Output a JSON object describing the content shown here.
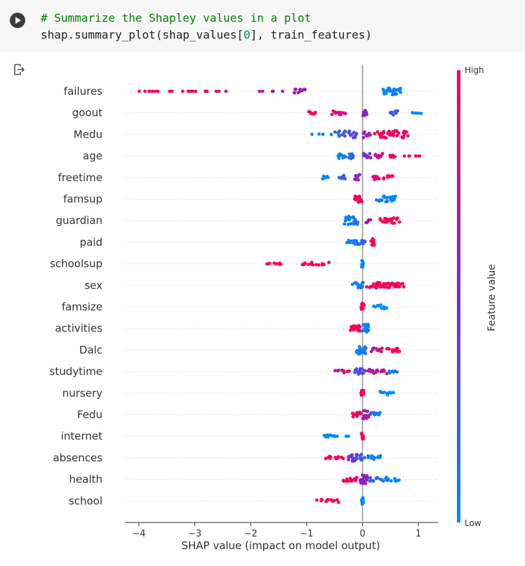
{
  "code_cell": {
    "line1": "# Summarize the Shapley values in a plot",
    "line2_prefix": "shap.summary_plot(shap_values[",
    "line2_index": "0",
    "line2_suffix": "], train_features)"
  },
  "colors": {
    "low": "#008afb",
    "mid": "#7b2bd0",
    "high": "#ff0052",
    "zero_line": "#999999"
  },
  "chart_data": {
    "type": "scatter",
    "xlabel": "SHAP value (impact on model output)",
    "xlim": [
      -4.25,
      1.35
    ],
    "xticks": [
      -4,
      -3,
      -2,
      -1,
      0,
      1
    ],
    "colorbar": {
      "label": "Feature value",
      "high": "High",
      "low": "Low"
    },
    "features": [
      "failures",
      "goout",
      "Medu",
      "age",
      "freetime",
      "famsup",
      "guardian",
      "paid",
      "schoolsup",
      "sex",
      "famsize",
      "activities",
      "Dalc",
      "studytime",
      "nursery",
      "Fedu",
      "internet",
      "absences",
      "health",
      "school"
    ],
    "series": [
      {
        "feature": "failures",
        "clusters": [
          {
            "x0": 0.35,
            "x1": 0.72,
            "n": 28,
            "c0": 0.0,
            "c1": 0.05,
            "s": 5
          },
          {
            "x0": -4.0,
            "x1": -3.6,
            "n": 7,
            "c0": 1.0,
            "c1": 0.95,
            "s": 0
          },
          {
            "x0": -3.6,
            "x1": -2.3,
            "n": 14,
            "c0": 0.97,
            "c1": 0.85,
            "s": 0
          },
          {
            "x0": -1.9,
            "x1": -1.4,
            "n": 5,
            "c0": 0.75,
            "c1": 0.65,
            "s": 0
          },
          {
            "x0": -1.25,
            "x1": -1.0,
            "n": 12,
            "c0": 0.65,
            "c1": 0.6,
            "s": 3
          }
        ]
      },
      {
        "feature": "goout",
        "clusters": [
          {
            "x0": -0.98,
            "x1": -0.82,
            "n": 8,
            "c0": 1.0,
            "c1": 0.95,
            "s": 2
          },
          {
            "x0": -0.55,
            "x1": -0.3,
            "n": 10,
            "c0": 0.9,
            "c1": 0.8,
            "s": 3
          },
          {
            "x0": 0.0,
            "x1": 0.08,
            "n": 10,
            "c0": 0.6,
            "c1": 0.5,
            "s": 4
          },
          {
            "x0": 0.48,
            "x1": 0.65,
            "n": 8,
            "c0": 0.3,
            "c1": 0.2,
            "s": 3
          },
          {
            "x0": 0.85,
            "x1": 1.08,
            "n": 5,
            "c0": 0.05,
            "c1": 0.0,
            "s": 1
          }
        ]
      },
      {
        "feature": "Medu",
        "clusters": [
          {
            "x0": -0.95,
            "x1": -0.55,
            "n": 4,
            "c0": 0.0,
            "c1": 0.1,
            "s": 1
          },
          {
            "x0": -0.5,
            "x1": -0.05,
            "n": 20,
            "c0": 0.2,
            "c1": 0.35,
            "s": 5
          },
          {
            "x0": 0.0,
            "x1": 0.15,
            "n": 10,
            "c0": 0.6,
            "c1": 0.7,
            "s": 5
          },
          {
            "x0": 0.2,
            "x1": 0.9,
            "n": 40,
            "c0": 1.0,
            "c1": 0.9,
            "s": 5
          }
        ]
      },
      {
        "feature": "age",
        "clusters": [
          {
            "x0": -0.45,
            "x1": -0.3,
            "n": 10,
            "c0": 0.0,
            "c1": 0.05,
            "s": 4
          },
          {
            "x0": -0.25,
            "x1": -0.15,
            "n": 10,
            "c0": 0.15,
            "c1": 0.2,
            "s": 5
          },
          {
            "x0": 0.0,
            "x1": 0.15,
            "n": 10,
            "c0": 0.45,
            "c1": 0.55,
            "s": 4
          },
          {
            "x0": 0.2,
            "x1": 0.38,
            "n": 10,
            "c0": 0.7,
            "c1": 0.8,
            "s": 4
          },
          {
            "x0": 0.48,
            "x1": 0.6,
            "n": 5,
            "c0": 0.9,
            "c1": 0.95,
            "s": 2
          },
          {
            "x0": 0.7,
            "x1": 1.1,
            "n": 6,
            "c0": 1.0,
            "c1": 1.0,
            "s": 0
          }
        ]
      },
      {
        "feature": "freetime",
        "clusters": [
          {
            "x0": -0.72,
            "x1": -0.6,
            "n": 5,
            "c0": 0.0,
            "c1": 0.05,
            "s": 2
          },
          {
            "x0": -0.42,
            "x1": -0.3,
            "n": 8,
            "c0": 0.2,
            "c1": 0.25,
            "s": 3
          },
          {
            "x0": -0.15,
            "x1": -0.05,
            "n": 8,
            "c0": 0.5,
            "c1": 0.55,
            "s": 4
          },
          {
            "x0": 0.18,
            "x1": 0.3,
            "n": 8,
            "c0": 0.85,
            "c1": 0.9,
            "s": 3
          },
          {
            "x0": 0.35,
            "x1": 0.58,
            "n": 8,
            "c0": 0.95,
            "c1": 1.0,
            "s": 3
          }
        ]
      },
      {
        "feature": "famsup",
        "clusters": [
          {
            "x0": -0.15,
            "x1": 0.0,
            "n": 16,
            "c0": 1.0,
            "c1": 0.95,
            "s": 5
          },
          {
            "x0": 0.22,
            "x1": 0.65,
            "n": 22,
            "c0": 0.05,
            "c1": 0.0,
            "s": 4
          }
        ]
      },
      {
        "feature": "guardian",
        "clusters": [
          {
            "x0": -0.35,
            "x1": -0.05,
            "n": 22,
            "c0": 0.0,
            "c1": 0.15,
            "s": 6
          },
          {
            "x0": 0.05,
            "x1": 0.15,
            "n": 5,
            "c0": 0.6,
            "c1": 0.65,
            "s": 3
          },
          {
            "x0": 0.28,
            "x1": 0.68,
            "n": 26,
            "c0": 1.0,
            "c1": 0.95,
            "s": 4
          }
        ]
      },
      {
        "feature": "paid",
        "clusters": [
          {
            "x0": -0.3,
            "x1": 0.08,
            "n": 22,
            "c0": 0.0,
            "c1": 0.2,
            "s": 3
          },
          {
            "x0": 0.15,
            "x1": 0.22,
            "n": 10,
            "c0": 1.0,
            "c1": 1.0,
            "s": 5
          }
        ]
      },
      {
        "feature": "schoolsup",
        "clusters": [
          {
            "x0": -1.75,
            "x1": -1.4,
            "n": 8,
            "c0": 1.0,
            "c1": 0.98,
            "s": 1
          },
          {
            "x0": -1.15,
            "x1": -0.6,
            "n": 14,
            "c0": 1.0,
            "c1": 0.97,
            "s": 2
          },
          {
            "x0": -0.02,
            "x1": 0.02,
            "n": 8,
            "c0": 0.0,
            "c1": 0.0,
            "s": 5
          }
        ]
      },
      {
        "feature": "sex",
        "clusters": [
          {
            "x0": -0.18,
            "x1": 0.05,
            "n": 14,
            "c0": 0.0,
            "c1": 0.1,
            "s": 4
          },
          {
            "x0": 0.05,
            "x1": 0.75,
            "n": 40,
            "c0": 0.95,
            "c1": 1.0,
            "s": 4
          }
        ]
      },
      {
        "feature": "famsize",
        "clusters": [
          {
            "x0": -0.03,
            "x1": 0.03,
            "n": 10,
            "c0": 1.0,
            "c1": 1.0,
            "s": 5
          },
          {
            "x0": 0.2,
            "x1": 0.45,
            "n": 10,
            "c0": 0.0,
            "c1": 0.0,
            "s": 3
          }
        ]
      },
      {
        "feature": "activities",
        "clusters": [
          {
            "x0": -0.25,
            "x1": -0.02,
            "n": 20,
            "c0": 1.0,
            "c1": 0.95,
            "s": 4
          },
          {
            "x0": 0.0,
            "x1": 0.13,
            "n": 18,
            "c0": 0.0,
            "c1": 0.05,
            "s": 6
          }
        ]
      },
      {
        "feature": "Dalc",
        "clusters": [
          {
            "x0": -0.15,
            "x1": 0.1,
            "n": 18,
            "c0": 0.0,
            "c1": 0.1,
            "s": 6
          },
          {
            "x0": 0.15,
            "x1": 0.38,
            "n": 12,
            "c0": 0.6,
            "c1": 0.8,
            "s": 3
          },
          {
            "x0": 0.4,
            "x1": 0.68,
            "n": 14,
            "c0": 0.95,
            "c1": 1.0,
            "s": 3
          }
        ]
      },
      {
        "feature": "studytime",
        "clusters": [
          {
            "x0": -0.5,
            "x1": -0.2,
            "n": 10,
            "c0": 0.7,
            "c1": 0.9,
            "s": 2
          },
          {
            "x0": -0.15,
            "x1": 0.05,
            "n": 16,
            "c0": 0.2,
            "c1": 0.4,
            "s": 4
          },
          {
            "x0": 0.05,
            "x1": 0.45,
            "n": 18,
            "c0": 0.65,
            "c1": 0.8,
            "s": 3
          },
          {
            "x0": 0.45,
            "x1": 0.65,
            "n": 6,
            "c0": 0.0,
            "c1": 0.1,
            "s": 2
          }
        ]
      },
      {
        "feature": "nursery",
        "clusters": [
          {
            "x0": -0.03,
            "x1": 0.03,
            "n": 10,
            "c0": 1.0,
            "c1": 1.0,
            "s": 5
          },
          {
            "x0": 0.28,
            "x1": 0.58,
            "n": 10,
            "c0": 0.0,
            "c1": 0.0,
            "s": 3
          }
        ]
      },
      {
        "feature": "Fedu",
        "clusters": [
          {
            "x0": -0.2,
            "x1": 0.0,
            "n": 14,
            "c0": 1.0,
            "c1": 0.9,
            "s": 4
          },
          {
            "x0": 0.0,
            "x1": 0.12,
            "n": 14,
            "c0": 0.6,
            "c1": 0.7,
            "s": 6
          },
          {
            "x0": 0.12,
            "x1": 0.35,
            "n": 10,
            "c0": 0.2,
            "c1": 0.0,
            "s": 3
          }
        ]
      },
      {
        "feature": "internet",
        "clusters": [
          {
            "x0": -0.72,
            "x1": -0.45,
            "n": 12,
            "c0": 0.0,
            "c1": 0.0,
            "s": 2
          },
          {
            "x0": -0.3,
            "x1": -0.25,
            "n": 2,
            "c0": 0.0,
            "c1": 0.0,
            "s": 0
          },
          {
            "x0": -0.02,
            "x1": 0.02,
            "n": 8,
            "c0": 1.0,
            "c1": 1.0,
            "s": 5
          }
        ]
      },
      {
        "feature": "absences",
        "clusters": [
          {
            "x0": -0.7,
            "x1": -0.3,
            "n": 12,
            "c0": 1.0,
            "c1": 0.9,
            "s": 2
          },
          {
            "x0": -0.3,
            "x1": 0.05,
            "n": 22,
            "c0": 0.6,
            "c1": 0.2,
            "s": 5
          },
          {
            "x0": 0.05,
            "x1": 0.35,
            "n": 12,
            "c0": 0.1,
            "c1": 0.0,
            "s": 3
          }
        ]
      },
      {
        "feature": "health",
        "clusters": [
          {
            "x0": -0.38,
            "x1": -0.05,
            "n": 16,
            "c0": 1.0,
            "c1": 0.9,
            "s": 3
          },
          {
            "x0": -0.05,
            "x1": 0.1,
            "n": 18,
            "c0": 0.55,
            "c1": 0.6,
            "s": 6
          },
          {
            "x0": 0.1,
            "x1": 0.68,
            "n": 22,
            "c0": 0.2,
            "c1": 0.0,
            "s": 3
          }
        ]
      },
      {
        "feature": "school",
        "clusters": [
          {
            "x0": -0.82,
            "x1": -0.4,
            "n": 14,
            "c0": 1.0,
            "c1": 1.0,
            "s": 2
          },
          {
            "x0": -0.02,
            "x1": 0.02,
            "n": 10,
            "c0": 0.0,
            "c1": 0.0,
            "s": 5
          }
        ]
      }
    ]
  }
}
